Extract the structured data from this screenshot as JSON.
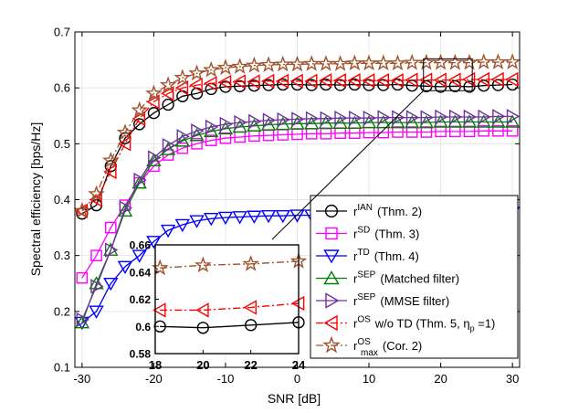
{
  "chart_data": [
    {
      "type": "line",
      "title": "",
      "xlabel": "SNR [dB]",
      "ylabel": "Spectral efficiency [bps/Hz]",
      "xlim": [
        -31,
        31
      ],
      "ylim": [
        0.1,
        0.7
      ],
      "xticks": [
        -30,
        -20,
        -10,
        0,
        10,
        20,
        30
      ],
      "yticks": [
        0.1,
        0.2,
        0.3,
        0.4,
        0.5,
        0.6,
        0.7
      ],
      "xtick_labels": [
        "-30",
        "-20",
        "-10",
        "0",
        "10",
        "20",
        "30"
      ],
      "ytick_labels": [
        "0.1",
        "0.2",
        "0.3",
        "0.4",
        "0.5",
        "0.6",
        "0.7"
      ],
      "grid": true,
      "legend_position": "lower-right",
      "x": [
        -30,
        -28,
        -26,
        -24,
        -22,
        -20,
        -18,
        -16,
        -14,
        -12,
        -10,
        -8,
        -6,
        -4,
        -2,
        0,
        2,
        4,
        6,
        8,
        10,
        12,
        14,
        16,
        18,
        20,
        22,
        24,
        26,
        28,
        30
      ],
      "series": [
        {
          "name_main": "r",
          "name_sup": "IAN",
          "name_sub": "",
          "name_rest": "(Thm. 2)",
          "color": "#000000",
          "marker": "circle",
          "dash": "solid",
          "values": [
            0.375,
            0.39,
            0.46,
            0.51,
            0.535,
            0.555,
            0.57,
            0.585,
            0.59,
            0.598,
            0.602,
            0.603,
            0.604,
            0.605,
            0.606,
            0.606,
            0.605,
            0.606,
            0.605,
            0.606,
            0.605,
            0.605,
            0.606,
            0.604,
            0.603,
            0.602,
            0.603,
            0.602,
            0.604,
            0.605,
            0.606
          ]
        },
        {
          "name_main": "r",
          "name_sup": "SD",
          "name_sub": "",
          "name_rest": "(Thm. 3)",
          "color": "#ff00ff",
          "marker": "square",
          "dash": "solid",
          "values": [
            0.26,
            0.3,
            0.35,
            0.39,
            0.43,
            0.46,
            0.48,
            0.492,
            0.5,
            0.506,
            0.51,
            0.512,
            0.514,
            0.515,
            0.516,
            0.517,
            0.518,
            0.518,
            0.519,
            0.519,
            0.52,
            0.52,
            0.521,
            0.521,
            0.521,
            0.522,
            0.522,
            0.522,
            0.523,
            0.523,
            0.523
          ]
        },
        {
          "name_main": "r",
          "name_sup": "TD",
          "name_sub": "",
          "name_rest": "(Thm. 4)",
          "color": "#0000ff",
          "marker": "triangle-down",
          "dash": "solid",
          "values": [
            0.18,
            0.2,
            0.25,
            0.28,
            0.3,
            0.325,
            0.345,
            0.355,
            0.362,
            0.366,
            0.368,
            0.369,
            0.37,
            0.371,
            0.371,
            0.372,
            0.372,
            0.373,
            0.373,
            0.373,
            0.374,
            0.374,
            0.374,
            0.375,
            0.375,
            0.375,
            0.375,
            0.376,
            0.376,
            0.376,
            0.377
          ]
        },
        {
          "name_main": "r",
          "name_sup": "SEP",
          "name_sub": "",
          "name_rest": "(Matched filter)",
          "color": "#008000",
          "marker": "triangle-up",
          "dash": "solid",
          "values": [
            0.18,
            0.25,
            0.31,
            0.38,
            0.43,
            0.47,
            0.49,
            0.505,
            0.515,
            0.522,
            0.527,
            0.53,
            0.532,
            0.534,
            0.535,
            0.536,
            0.536,
            0.537,
            0.537,
            0.537,
            0.538,
            0.538,
            0.538,
            0.538,
            0.538,
            0.539,
            0.539,
            0.539,
            0.539,
            0.539,
            0.539
          ]
        },
        {
          "name_main": "r",
          "name_sup": "SEP",
          "name_sub": "",
          "name_rest": "(MMSE filter)",
          "color": "#7030a0",
          "marker": "triangle-right",
          "dash": "solid",
          "values": [
            0.185,
            0.245,
            0.31,
            0.385,
            0.435,
            0.475,
            0.497,
            0.513,
            0.523,
            0.53,
            0.535,
            0.538,
            0.54,
            0.542,
            0.543,
            0.544,
            0.545,
            0.545,
            0.546,
            0.546,
            0.546,
            0.547,
            0.547,
            0.547,
            0.547,
            0.548,
            0.548,
            0.548,
            0.548,
            0.549,
            0.549
          ]
        },
        {
          "name_main": "r",
          "name_sup": "OS",
          "name_sub": "",
          "name_rest": "w/o TD (Thm. 5, η",
          "name_rest_sub": "p",
          "name_rest_tail": " =1)",
          "color": "#ff0000",
          "marker": "triangle-left",
          "dash": "dashdot",
          "values": [
            0.38,
            0.4,
            0.45,
            0.5,
            0.545,
            0.575,
            0.59,
            0.6,
            0.605,
            0.608,
            0.61,
            0.611,
            0.611,
            0.612,
            0.612,
            0.612,
            0.612,
            0.613,
            0.613,
            0.613,
            0.613,
            0.613,
            0.613,
            0.614,
            0.614,
            0.614,
            0.614,
            0.615,
            0.615,
            0.615,
            0.615
          ]
        },
        {
          "name_main": "r",
          "name_sup": "OS",
          "name_sub": "max",
          "name_rest": "(Cor. 2)",
          "color": "#a0522d",
          "marker": "star",
          "dash": "dashdot",
          "values": [
            0.38,
            0.41,
            0.47,
            0.52,
            0.56,
            0.59,
            0.605,
            0.618,
            0.626,
            0.632,
            0.636,
            0.638,
            0.64,
            0.641,
            0.642,
            0.642,
            0.643,
            0.643,
            0.643,
            0.644,
            0.644,
            0.644,
            0.644,
            0.645,
            0.645,
            0.645,
            0.645,
            0.645,
            0.646,
            0.646,
            0.646
          ]
        }
      ]
    },
    {
      "type": "line",
      "title": "",
      "xlabel": "",
      "ylabel": "",
      "xlim": [
        18,
        24
      ],
      "ylim": [
        0.58,
        0.66
      ],
      "xticks": [
        18,
        20,
        22,
        24
      ],
      "yticks": [
        0.58,
        0.6,
        0.62,
        0.64,
        0.66
      ],
      "xtick_labels": [
        "18",
        "20",
        "22",
        "24"
      ],
      "ytick_labels": [
        "0.58",
        "0.6",
        "0.62",
        "0.64",
        "0.66"
      ],
      "grid": false,
      "x": [
        18.2,
        20,
        22,
        24
      ],
      "series": [
        {
          "name": "IAN",
          "color": "#000000",
          "marker": "circle",
          "dash": "solid",
          "values": [
            0.6,
            0.599,
            0.601,
            0.603
          ]
        },
        {
          "name": "OS",
          "color": "#ff0000",
          "marker": "triangle-left",
          "dash": "dashdot",
          "values": [
            0.612,
            0.612,
            0.614,
            0.617
          ]
        },
        {
          "name": "OSmax",
          "color": "#a0522d",
          "marker": "star",
          "dash": "dashdot",
          "values": [
            0.643,
            0.645,
            0.646,
            0.648
          ]
        }
      ]
    }
  ]
}
